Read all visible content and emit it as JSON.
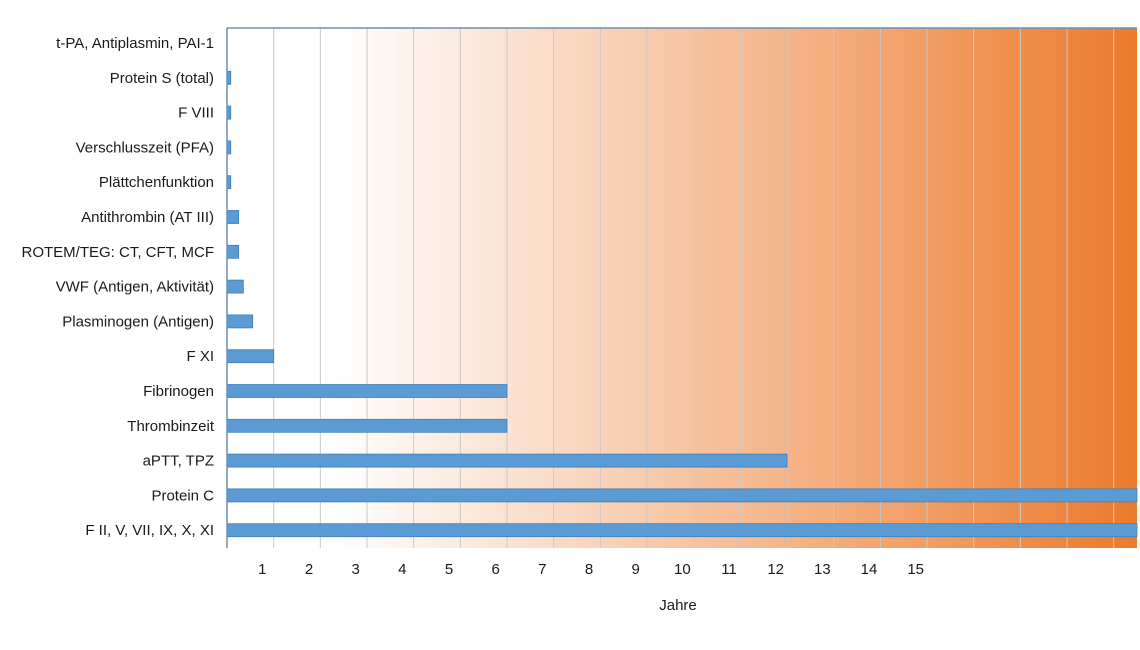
{
  "chart_data": {
    "type": "bar",
    "orientation": "horizontal",
    "categories": [
      "t-PA, Antiplasmin, PAI-1",
      "Protein S (total)",
      "F VIII",
      "Verschlusszeit (PFA)",
      "Plättchenfunktion",
      "Antithrombin (AT III)",
      "ROTEM/TEG: CT, CFT, MCF",
      "VWF (Antigen, Aktivität)",
      "Plasminogen (Antigen)",
      "F XI",
      "Fibrinogen",
      "Thrombinzeit",
      "aPTT, TPZ",
      "Protein C",
      "F II, V, VII, IX, X, XI"
    ],
    "values": [
      0,
      0.08,
      0.08,
      0.08,
      0.08,
      0.25,
      0.25,
      0.35,
      0.55,
      1.0,
      6.0,
      6.0,
      12.0,
      19.5,
      19.5
    ],
    "x_ticks": [
      "1",
      "2",
      "3",
      "4",
      "5",
      "6",
      "7",
      "8",
      "9",
      "10",
      "11",
      "12",
      "13",
      "14",
      "15"
    ],
    "xlabel": "Jahre",
    "xlim": [
      0,
      19.5
    ],
    "grid": "vertical",
    "background": "gradient white to orange, left to right",
    "colors": {
      "bar": "#5b9bd5",
      "bar_stroke": "#3f7fb8",
      "gradient_start": "#ffffff",
      "gradient_end": "#ec7a2c",
      "axis": "#6b8fb5",
      "grid": "#c9c9c9"
    }
  }
}
